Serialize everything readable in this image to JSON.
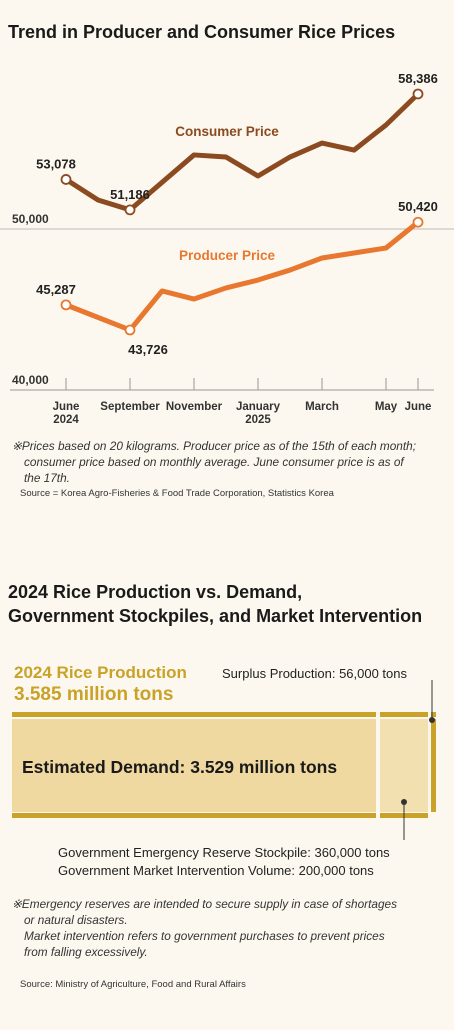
{
  "chart_data": {
    "type": "line",
    "title": "Trend in Producer and Consumer Rice Prices",
    "xlim": [
      0,
      11
    ],
    "xticks": [
      {
        "value": 0,
        "label": "June\n2024"
      },
      {
        "value": 2,
        "label": "September"
      },
      {
        "value": 4,
        "label": "November"
      },
      {
        "value": 6,
        "label": "January\n2025"
      },
      {
        "value": 8,
        "label": "March"
      },
      {
        "value": 10,
        "label": "May"
      },
      {
        "value": 11,
        "label": "June"
      }
    ],
    "ylim": [
      40000,
      60000
    ],
    "yticks": [
      {
        "value": 40000,
        "label": "40,000"
      },
      {
        "value": 50000,
        "label": "50,000"
      }
    ],
    "series": [
      {
        "name": "Consumer Price",
        "color": "#8b4a1f",
        "x": [
          0,
          1,
          2,
          4,
          5,
          6,
          7,
          8,
          9,
          10,
          11
        ],
        "values": [
          53078,
          51800,
          51186,
          54600,
          54470,
          53290,
          54470,
          55340,
          54900,
          56460,
          58386
        ],
        "value_labels": [
          "53,078",
          null,
          "51,186",
          null,
          null,
          null,
          null,
          null,
          null,
          null,
          "58,386"
        ]
      },
      {
        "name": "Producer Price",
        "color": "#e8782f",
        "x": [
          0,
          2,
          3,
          4,
          5,
          6,
          7,
          8,
          9,
          10,
          11
        ],
        "values": [
          45287,
          43726,
          46150,
          45650,
          46340,
          46830,
          47450,
          48200,
          48510,
          48820,
          50420
        ],
        "value_labels": [
          "45,287",
          "43,726",
          null,
          null,
          null,
          null,
          null,
          null,
          null,
          null,
          "50,420"
        ]
      }
    ],
    "note": "※Prices based on 20 kilograms. Producer price as of the 15th of each month;\nconsumer price based on monthly average. June consumer price is as of\nthe 17th.",
    "source": "Source = Korea Agro-Fisheries & Food Trade Corporation, Statistics Korea"
  },
  "production": {
    "title": "2024 Rice Production vs. Demand,\nGovernment Stockpiles, and Market Intervention",
    "label": "2024 Rice Production",
    "amount": "3.585 million tons",
    "surplus": "Surplus Production: 56,000 tons",
    "demand": "Estimated Demand: 3.529 million tons",
    "reserve": "Government Emergency Reserve Stockpile: 360,000 tons",
    "intervention": "Government Market Intervention Volume: 200,000 tons",
    "note": "※Emergency reserves are intended to secure supply in case of shortages\nor natural disasters.\nMarket intervention refers to government purchases to prevent prices\nfrom falling excessively.",
    "source": "Source: Ministry of Agriculture, Food and Rural Affairs"
  }
}
